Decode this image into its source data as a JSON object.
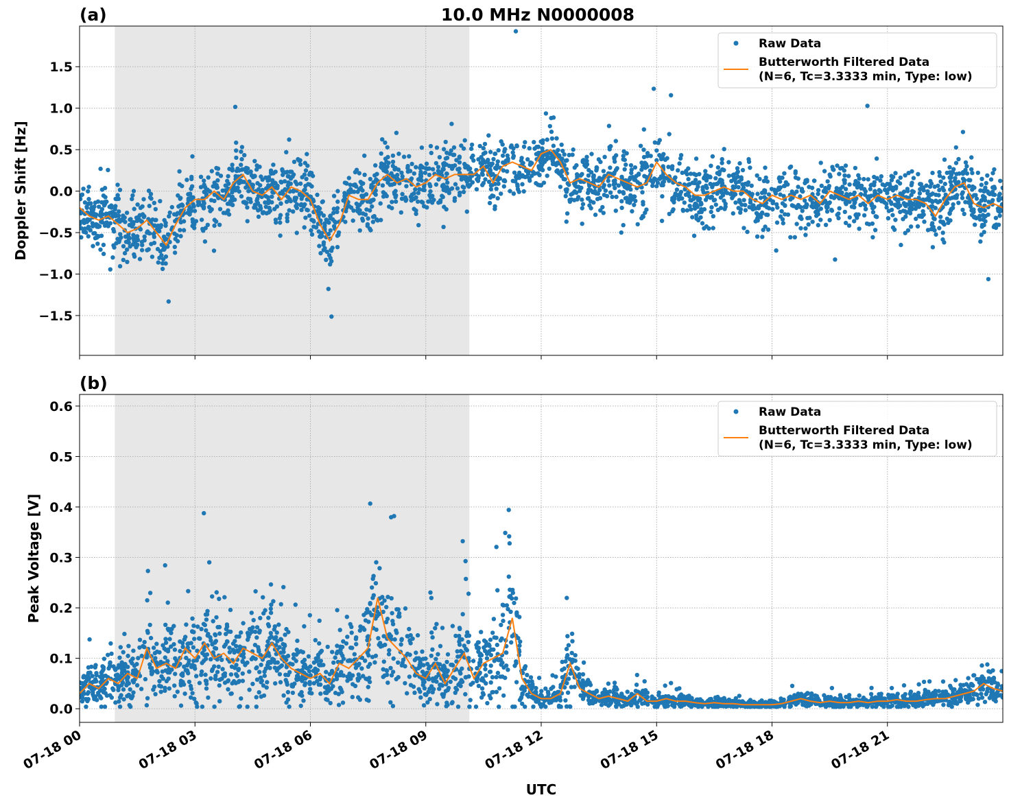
{
  "chart_data": [
    {
      "type": "scatter",
      "panel_label": "(a)",
      "title": "10.0 MHz N0000008",
      "xlabel": "",
      "ylabel": "Doppler Shift [Hz]",
      "date": "07-18",
      "x_tick_labels": [
        "07-18 00",
        "07-18 03",
        "07-18 06",
        "07-18 09",
        "07-18 12",
        "07-18 15",
        "07-18 18",
        "07-18 21"
      ],
      "x_tick_labels_visible": false,
      "y_ticks": [
        -1.5,
        -1.0,
        -0.5,
        0.0,
        0.5,
        1.0,
        1.5
      ],
      "y_tick_labels": [
        "−1.5",
        "−1.0",
        "−0.5",
        "0.0",
        "0.5",
        "1.0",
        "1.5"
      ],
      "xlim": [
        "07-18 00:00",
        "07-18 24:00"
      ],
      "ylim": [
        -1.98,
        1.99
      ],
      "grid": true,
      "shaded_interval": [
        "07-18 00:55",
        "07-18 10:08"
      ],
      "legend": {
        "placement": "top-right",
        "entries": [
          "Raw Data",
          "Butterworth Filtered Data",
          "(N=6, Tc=3.3333 min, Type: low)"
        ]
      },
      "raw_spread_hz": 0.3,
      "series": [
        {
          "name": "Raw Data",
          "kind": "scatter",
          "color": "#1f77b4"
        },
        {
          "name": "Butterworth Filtered Data",
          "kind": "line",
          "color": "#ff7f0e",
          "time_step_minutes": 15,
          "values": [
            -0.2,
            -0.3,
            -0.35,
            -0.3,
            -0.4,
            -0.5,
            -0.45,
            -0.35,
            -0.5,
            -0.65,
            -0.4,
            -0.2,
            -0.1,
            -0.1,
            0.0,
            -0.1,
            0.1,
            0.2,
            0.0,
            -0.05,
            0.05,
            -0.1,
            0.05,
            0.0,
            -0.1,
            -0.4,
            -0.6,
            -0.4,
            -0.05,
            -0.1,
            -0.1,
            0.1,
            0.2,
            0.1,
            0.15,
            0.05,
            0.1,
            0.2,
            0.15,
            0.2,
            0.2,
            0.2,
            0.3,
            0.1,
            0.3,
            0.35,
            0.3,
            0.25,
            0.45,
            0.5,
            0.35,
            0.1,
            0.15,
            0.1,
            0.05,
            0.2,
            0.15,
            0.1,
            0.05,
            0.1,
            0.35,
            0.2,
            0.1,
            0.05,
            -0.05,
            -0.05,
            0.0,
            0.05,
            0.0,
            0.0,
            -0.1,
            -0.15,
            -0.05,
            -0.1,
            -0.05,
            -0.1,
            -0.05,
            -0.15,
            0.0,
            -0.05,
            -0.1,
            -0.05,
            -0.15,
            -0.05,
            -0.1,
            -0.05,
            -0.1,
            -0.1,
            -0.15,
            -0.3,
            -0.1,
            0.05,
            0.1,
            -0.15,
            -0.2,
            -0.15,
            -0.2
          ]
        }
      ]
    },
    {
      "type": "scatter",
      "panel_label": "(b)",
      "title": "",
      "xlabel": "UTC",
      "ylabel": "Peak Voltage [V]",
      "date": "07-18",
      "x_tick_labels": [
        "07-18 00",
        "07-18 03",
        "07-18 06",
        "07-18 09",
        "07-18 12",
        "07-18 15",
        "07-18 18",
        "07-18 21"
      ],
      "y_ticks": [
        0.0,
        0.1,
        0.2,
        0.3,
        0.4,
        0.5,
        0.6
      ],
      "y_tick_labels": [
        "0.0",
        "0.1",
        "0.2",
        "0.3",
        "0.4",
        "0.5",
        "0.6"
      ],
      "xlim": [
        "07-18 00:00",
        "07-18 24:00"
      ],
      "ylim": [
        -0.027,
        0.623
      ],
      "grid": true,
      "shaded_interval": [
        "07-18 00:55",
        "07-18 10:08"
      ],
      "legend": {
        "placement": "top-right",
        "entries": [
          "Raw Data",
          "Butterworth Filtered Data",
          "(N=6, Tc=3.3333 min, Type: low)"
        ]
      },
      "series": [
        {
          "name": "Raw Data",
          "kind": "scatter",
          "color": "#1f77b4"
        },
        {
          "name": "Butterworth Filtered Data",
          "kind": "line",
          "color": "#ff7f0e",
          "time_step_minutes": 15,
          "values": [
            0.03,
            0.05,
            0.04,
            0.06,
            0.05,
            0.07,
            0.06,
            0.12,
            0.08,
            0.09,
            0.08,
            0.12,
            0.1,
            0.13,
            0.1,
            0.11,
            0.09,
            0.12,
            0.11,
            0.1,
            0.13,
            0.1,
            0.08,
            0.07,
            0.06,
            0.07,
            0.05,
            0.09,
            0.08,
            0.1,
            0.12,
            0.22,
            0.14,
            0.12,
            0.1,
            0.07,
            0.06,
            0.09,
            0.05,
            0.08,
            0.11,
            0.06,
            0.09,
            0.1,
            0.11,
            0.18,
            0.06,
            0.03,
            0.02,
            0.02,
            0.03,
            0.09,
            0.04,
            0.03,
            0.02,
            0.025,
            0.02,
            0.015,
            0.03,
            0.015,
            0.015,
            0.02,
            0.015,
            0.015,
            0.012,
            0.01,
            0.012,
            0.01,
            0.01,
            0.008,
            0.008,
            0.008,
            0.008,
            0.01,
            0.015,
            0.02,
            0.015,
            0.012,
            0.015,
            0.012,
            0.012,
            0.015,
            0.012,
            0.015,
            0.015,
            0.018,
            0.015,
            0.015,
            0.018,
            0.02,
            0.02,
            0.025,
            0.03,
            0.035,
            0.05,
            0.04,
            0.035
          ]
        }
      ]
    }
  ]
}
